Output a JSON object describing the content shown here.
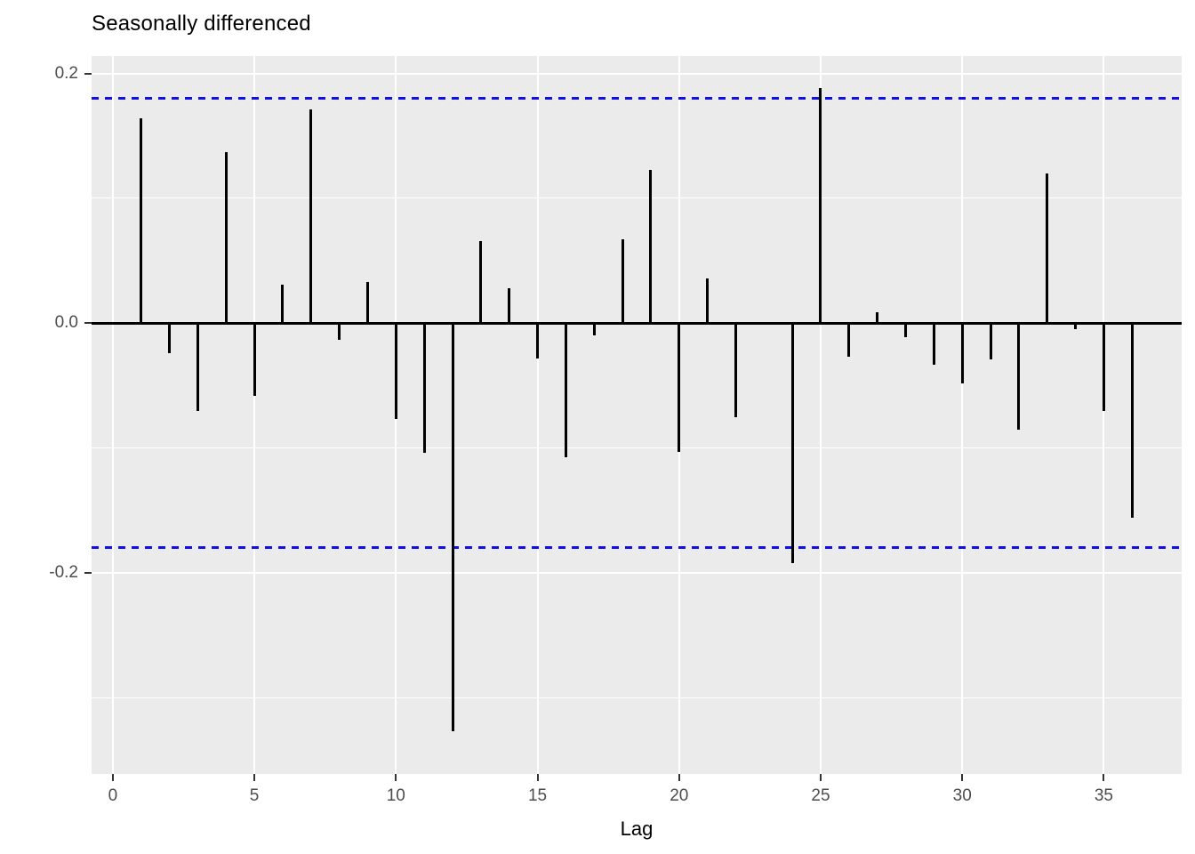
{
  "title": "Seasonally differenced",
  "axes": {
    "x_label": "Lag"
  },
  "chart_data": {
    "type": "bar",
    "subtype": "acf-spike-plot",
    "title": "Seasonally differenced",
    "xlabel": "Lag",
    "ylabel": "",
    "x": [
      1,
      2,
      3,
      4,
      5,
      6,
      7,
      8,
      9,
      10,
      11,
      12,
      13,
      14,
      15,
      16,
      17,
      18,
      19,
      20,
      21,
      22,
      23,
      24,
      25,
      26,
      27,
      28,
      29,
      30,
      31,
      32,
      33,
      34,
      35,
      36
    ],
    "values": [
      0.164,
      -0.024,
      -0.07,
      0.137,
      -0.058,
      0.031,
      0.171,
      -0.013,
      0.033,
      -0.077,
      -0.104,
      -0.327,
      0.066,
      0.028,
      -0.028,
      -0.107,
      -0.01,
      0.067,
      0.123,
      -0.103,
      0.036,
      -0.075,
      0.001,
      -0.192,
      0.188,
      -0.027,
      0.009,
      -0.011,
      -0.033,
      -0.048,
      -0.029,
      -0.085,
      0.12,
      -0.005,
      -0.07,
      -0.156
    ],
    "confidence_bounds": {
      "upper": 0.18,
      "lower": -0.18,
      "line_style": "dashed"
    },
    "x_ticks": [
      {
        "label": "0",
        "v": 0
      },
      {
        "label": "5",
        "v": 5
      },
      {
        "label": "10",
        "v": 10
      },
      {
        "label": "15",
        "v": 15
      },
      {
        "label": "20",
        "v": 20
      },
      {
        "label": "25",
        "v": 25
      },
      {
        "label": "30",
        "v": 30
      },
      {
        "label": "35",
        "v": 35
      }
    ],
    "y_ticks": [
      {
        "label": "0.2",
        "v": 0.2
      },
      {
        "label": "0.0",
        "v": 0.0
      },
      {
        "label": "-0.2",
        "v": -0.2
      }
    ],
    "y_minor_gridlines": [
      0.1,
      -0.1,
      -0.3
    ],
    "xlim": [
      -0.75,
      37.75
    ],
    "ylim": [
      -0.361,
      0.214
    ],
    "grid": "white major+minor horizontal, white major vertical, on gray panel",
    "legend": false,
    "colors": {
      "spike": "#000000",
      "panel_bg": "#EBEBEB",
      "gridline": "#FFFFFF",
      "tick_label": "#4D4D4D",
      "axis_title": "#000000",
      "title": "#000000",
      "ci_line": "#0F0FE6"
    }
  }
}
